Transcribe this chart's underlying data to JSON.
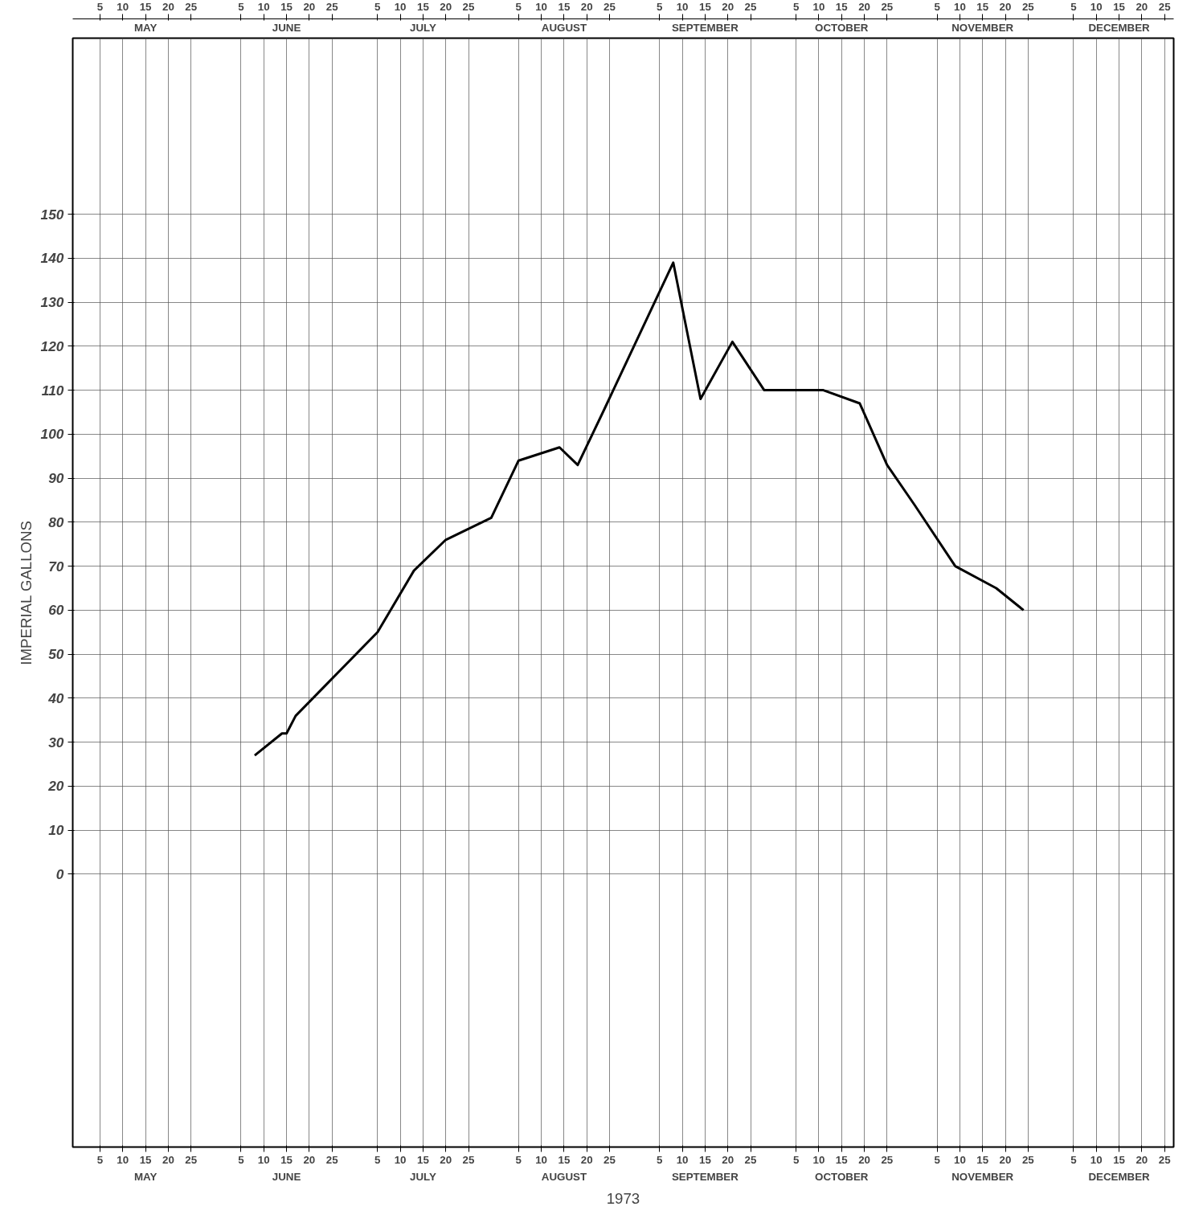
{
  "chart_data": {
    "type": "line",
    "xlabel": "1973",
    "ylabel": "IMPERIAL GALLONS",
    "x": [
      "1973-06-08",
      "1973-06-14",
      "1973-06-15",
      "1973-06-17",
      "1973-07-05",
      "1973-07-13",
      "1973-07-20",
      "1973-07-30",
      "1973-08-05",
      "1973-08-14",
      "1973-08-18",
      "1973-08-24",
      "1973-09-08",
      "1973-09-14",
      "1973-09-21",
      "1973-09-28",
      "1973-10-11",
      "1973-10-19",
      "1973-10-25",
      "1973-10-31",
      "1973-11-09",
      "1973-11-18",
      "1973-11-24"
    ],
    "series": [
      {
        "color": "#000000",
        "values": [
          27,
          32,
          32,
          36,
          55,
          69,
          76,
          81,
          94,
          97,
          93,
          106,
          139,
          108,
          121,
          110,
          110,
          107,
          93,
          84,
          70,
          65,
          60
        ]
      }
    ],
    "xlim": [
      "1973-04-29",
      "1973-12-27"
    ],
    "xticks": [
      {
        "value": "1973-05-05",
        "label": "5"
      },
      {
        "value": "1973-05-10",
        "label": "10"
      },
      {
        "value": "1973-05-15",
        "label": "15"
      },
      {
        "value": "1973-05-20",
        "label": "20"
      },
      {
        "value": "1973-05-25",
        "label": "25"
      },
      {
        "value": "1973-06-05",
        "label": "5"
      },
      {
        "value": "1973-06-10",
        "label": "10"
      },
      {
        "value": "1973-06-15",
        "label": "15"
      },
      {
        "value": "1973-06-20",
        "label": "20"
      },
      {
        "value": "1973-06-25",
        "label": "25"
      },
      {
        "value": "1973-07-05",
        "label": "5"
      },
      {
        "value": "1973-07-10",
        "label": "10"
      },
      {
        "value": "1973-07-15",
        "label": "15"
      },
      {
        "value": "1973-07-20",
        "label": "20"
      },
      {
        "value": "1973-07-25",
        "label": "25"
      },
      {
        "value": "1973-08-05",
        "label": "5"
      },
      {
        "value": "1973-08-10",
        "label": "10"
      },
      {
        "value": "1973-08-15",
        "label": "15"
      },
      {
        "value": "1973-08-20",
        "label": "20"
      },
      {
        "value": "1973-08-25",
        "label": "25"
      },
      {
        "value": "1973-09-05",
        "label": "5"
      },
      {
        "value": "1973-09-10",
        "label": "10"
      },
      {
        "value": "1973-09-15",
        "label": "15"
      },
      {
        "value": "1973-09-20",
        "label": "20"
      },
      {
        "value": "1973-09-25",
        "label": "25"
      },
      {
        "value": "1973-10-05",
        "label": "5"
      },
      {
        "value": "1973-10-10",
        "label": "10"
      },
      {
        "value": "1973-10-15",
        "label": "15"
      },
      {
        "value": "1973-10-20",
        "label": "20"
      },
      {
        "value": "1973-10-25",
        "label": "25"
      },
      {
        "value": "1973-11-05",
        "label": "5"
      },
      {
        "value": "1973-11-10",
        "label": "10"
      },
      {
        "value": "1973-11-15",
        "label": "15"
      },
      {
        "value": "1973-11-20",
        "label": "20"
      },
      {
        "value": "1973-11-25",
        "label": "25"
      },
      {
        "value": "1973-12-05",
        "label": "5"
      },
      {
        "value": "1973-12-10",
        "label": "10"
      },
      {
        "value": "1973-12-15",
        "label": "15"
      },
      {
        "value": "1973-12-20",
        "label": "20"
      },
      {
        "value": "1973-12-25",
        "label": "25"
      }
    ],
    "x2lim": [
      "1973-04-29",
      "1973-12-27"
    ],
    "x2ticks": [
      {
        "value": "1973-05-05",
        "label": "5"
      },
      {
        "value": "1973-05-10",
        "label": "10"
      },
      {
        "value": "1973-05-15",
        "label": "15"
      },
      {
        "value": "1973-05-20",
        "label": "20"
      },
      {
        "value": "1973-05-25",
        "label": "25"
      },
      {
        "value": "1973-06-05",
        "label": "5"
      },
      {
        "value": "1973-06-10",
        "label": "10"
      },
      {
        "value": "1973-06-15",
        "label": "15"
      },
      {
        "value": "1973-06-20",
        "label": "20"
      },
      {
        "value": "1973-06-25",
        "label": "25"
      },
      {
        "value": "1973-07-05",
        "label": "5"
      },
      {
        "value": "1973-07-10",
        "label": "10"
      },
      {
        "value": "1973-07-15",
        "label": "15"
      },
      {
        "value": "1973-07-20",
        "label": "20"
      },
      {
        "value": "1973-07-25",
        "label": "25"
      },
      {
        "value": "1973-08-05",
        "label": "5"
      },
      {
        "value": "1973-08-10",
        "label": "10"
      },
      {
        "value": "1973-08-15",
        "label": "15"
      },
      {
        "value": "1973-08-20",
        "label": "20"
      },
      {
        "value": "1973-08-25",
        "label": "25"
      },
      {
        "value": "1973-09-05",
        "label": "5"
      },
      {
        "value": "1973-09-10",
        "label": "10"
      },
      {
        "value": "1973-09-15",
        "label": "15"
      },
      {
        "value": "1973-09-20",
        "label": "20"
      },
      {
        "value": "1973-09-25",
        "label": "25"
      },
      {
        "value": "1973-10-05",
        "label": "5"
      },
      {
        "value": "1973-10-10",
        "label": "10"
      },
      {
        "value": "1973-10-15",
        "label": "15"
      },
      {
        "value": "1973-10-20",
        "label": "20"
      },
      {
        "value": "1973-10-25",
        "label": "25"
      },
      {
        "value": "1973-11-05",
        "label": "5"
      },
      {
        "value": "1973-11-10",
        "label": "10"
      },
      {
        "value": "1973-11-15",
        "label": "15"
      },
      {
        "value": "1973-11-20",
        "label": "20"
      },
      {
        "value": "1973-11-25",
        "label": "25"
      },
      {
        "value": "1973-12-05",
        "label": "5"
      },
      {
        "value": "1973-12-10",
        "label": "10"
      },
      {
        "value": "1973-12-15",
        "label": "15"
      },
      {
        "value": "1973-12-20",
        "label": "20"
      },
      {
        "value": "1973-12-25",
        "label": "25"
      }
    ],
    "annotations": [
      "MAY",
      "JUNE",
      "JULY",
      "AUGUST",
      "SEPTEMBER",
      "OCTOBER",
      "NOVEMBER",
      "DECEMBER",
      "MAY",
      "JUNE",
      "JULY",
      "AUGUST",
      "SEPTEMBER",
      "OCTOBER",
      "NOVEMBER",
      "DECEMBER"
    ],
    "ylim": [
      -62,
      190
    ],
    "yticks": [
      0,
      10,
      20,
      30,
      40,
      50,
      60,
      70,
      80,
      90,
      100,
      110,
      120,
      130,
      140,
      150
    ],
    "grid": true,
    "line_style": "solid",
    "marker": "none"
  }
}
